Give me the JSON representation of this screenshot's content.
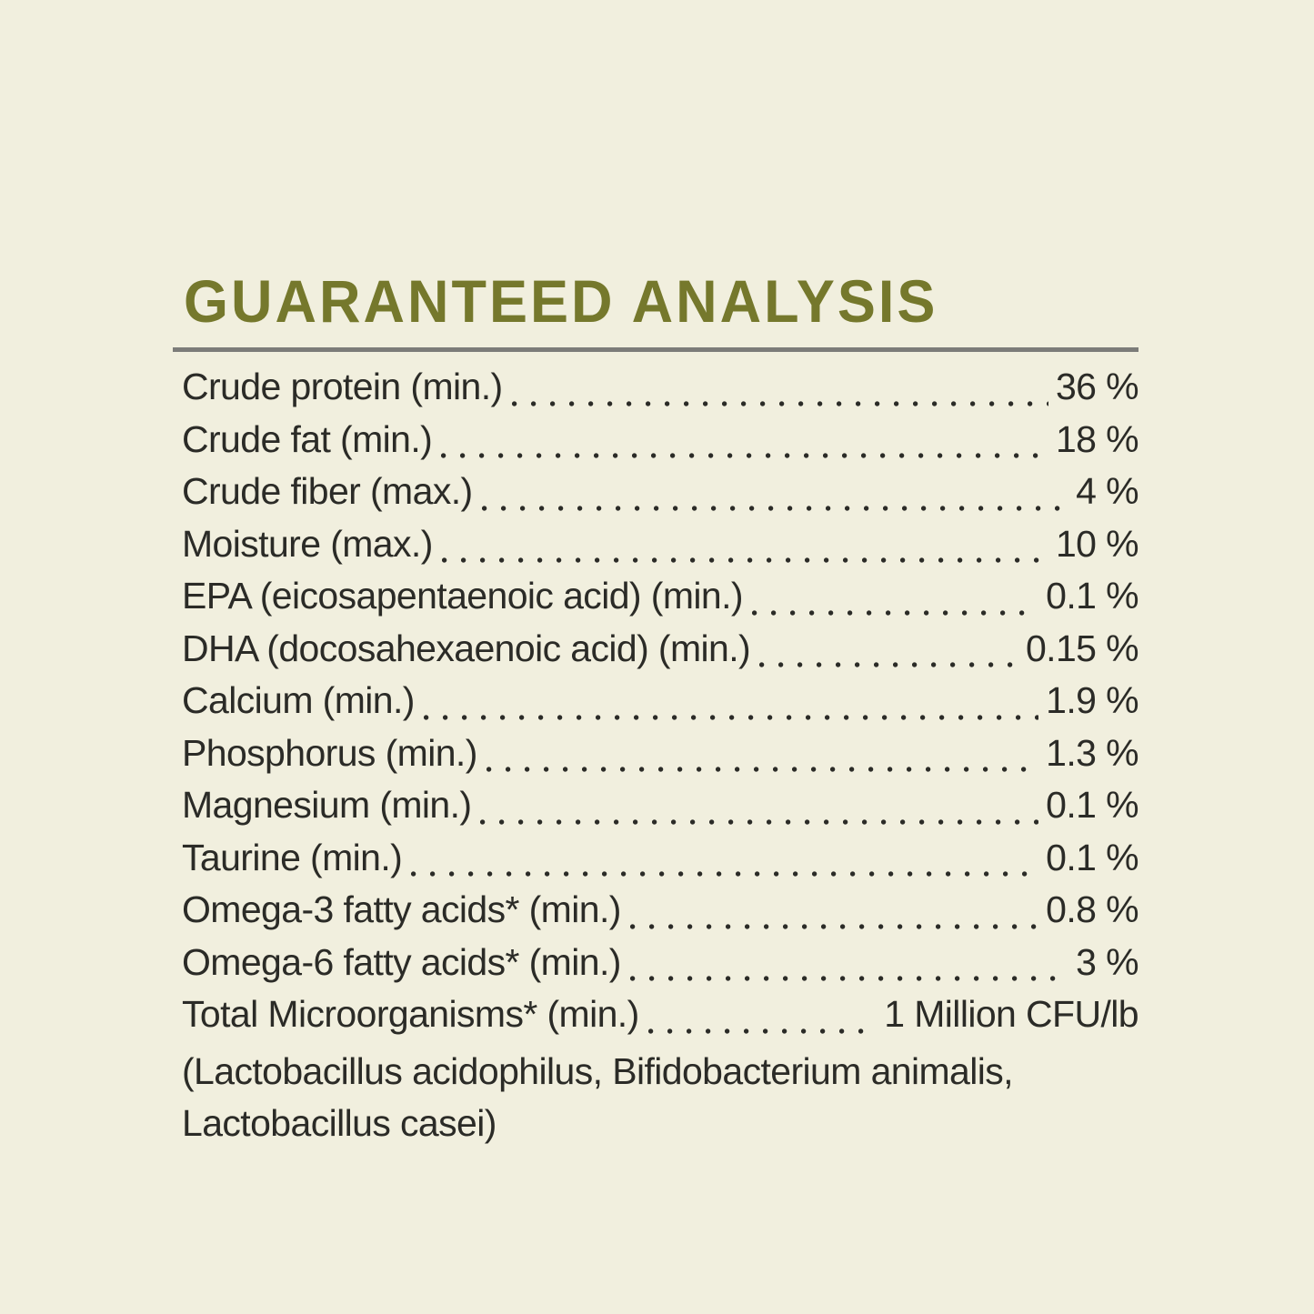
{
  "colors": {
    "background": "#f1efde",
    "heading": "#75782c",
    "text": "#2b2b27",
    "rule": "#7c7c79"
  },
  "analysis": {
    "title": "GUARANTEED ANALYSIS",
    "rows": [
      {
        "label": "Crude protein (min.)",
        "value": "36 %"
      },
      {
        "label": "Crude fat (min.)",
        "value": "18 %"
      },
      {
        "label": "Crude fiber (max.)",
        "value": "4 %"
      },
      {
        "label": "Moisture (max.)",
        "value": "10 %"
      },
      {
        "label": "EPA (eicosapentaenoic acid) (min.)",
        "value": "0.1 %"
      },
      {
        "label": "DHA (docosahexaenoic acid) (min.)",
        "value": "0.15 %"
      },
      {
        "label": "Calcium (min.)",
        "value": "1.9 %"
      },
      {
        "label": "Phosphorus (min.)",
        "value": "1.3 %"
      },
      {
        "label": "Magnesium (min.)",
        "value": "0.1 %"
      },
      {
        "label": "Taurine (min.)",
        "value": "0.1 %"
      },
      {
        "label": "Omega-3 fatty acids* (min.)",
        "value": "0.8 %"
      },
      {
        "label": "Omega-6 fatty acids* (min.)",
        "value": "3 %"
      },
      {
        "label": "Total Microorganisms* (min.)",
        "value": "1 Million CFU/lb"
      }
    ],
    "footnote": {
      "line1": "(Lactobacillus acidophilus, Bifidobacterium animalis,",
      "line2": "Lactobacillus casei)"
    }
  }
}
